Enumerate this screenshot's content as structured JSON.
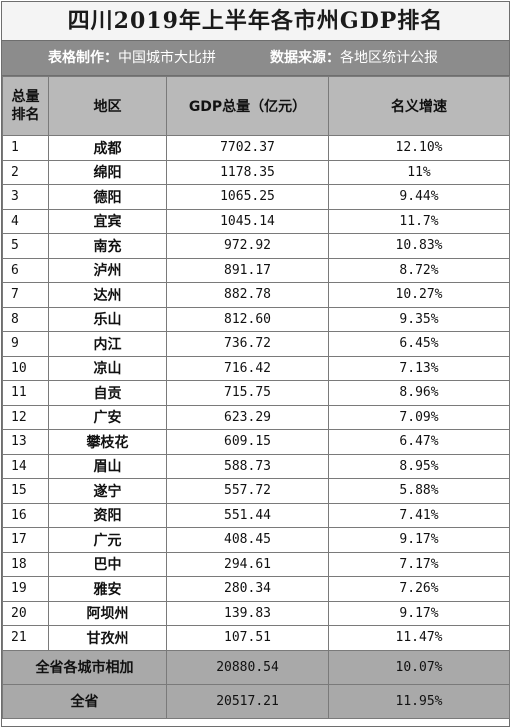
{
  "title": "四川2019年上半年各市州GDP排名",
  "subtitle": {
    "maker_label": "表格制作：",
    "maker_value": "中国城市大比拼",
    "source_label": "数据来源：",
    "source_value": "各地区统计公报"
  },
  "headers": {
    "rank_line1": "总量",
    "rank_line2": "排名",
    "region": "地区",
    "gdp": "GDP总量（亿元）",
    "growth": "名义增速"
  },
  "rows": [
    {
      "rank": "1",
      "region": "成都",
      "gdp": "7702.37",
      "growth": "12.10%"
    },
    {
      "rank": "2",
      "region": "绵阳",
      "gdp": "1178.35",
      "growth": "11%"
    },
    {
      "rank": "3",
      "region": "德阳",
      "gdp": "1065.25",
      "growth": "9.44%"
    },
    {
      "rank": "4",
      "region": "宜宾",
      "gdp": "1045.14",
      "growth": "11.7%"
    },
    {
      "rank": "5",
      "region": "南充",
      "gdp": "972.92",
      "growth": "10.83%"
    },
    {
      "rank": "6",
      "region": "泸州",
      "gdp": "891.17",
      "growth": "8.72%"
    },
    {
      "rank": "7",
      "region": "达州",
      "gdp": "882.78",
      "growth": "10.27%"
    },
    {
      "rank": "8",
      "region": "乐山",
      "gdp": "812.60",
      "growth": "9.35%"
    },
    {
      "rank": "9",
      "region": "内江",
      "gdp": "736.72",
      "growth": "6.45%"
    },
    {
      "rank": "10",
      "region": "凉山",
      "gdp": "716.42",
      "growth": "7.13%"
    },
    {
      "rank": "11",
      "region": "自贡",
      "gdp": "715.75",
      "growth": "8.96%"
    },
    {
      "rank": "12",
      "region": "广安",
      "gdp": "623.29",
      "growth": "7.09%"
    },
    {
      "rank": "13",
      "region": "攀枝花",
      "gdp": "609.15",
      "growth": "6.47%"
    },
    {
      "rank": "14",
      "region": "眉山",
      "gdp": "588.73",
      "growth": "8.95%"
    },
    {
      "rank": "15",
      "region": "遂宁",
      "gdp": "557.72",
      "growth": "5.88%"
    },
    {
      "rank": "16",
      "region": "资阳",
      "gdp": "551.44",
      "growth": "7.41%"
    },
    {
      "rank": "17",
      "region": "广元",
      "gdp": "408.45",
      "growth": "9.17%"
    },
    {
      "rank": "18",
      "region": "巴中",
      "gdp": "294.61",
      "growth": "7.17%"
    },
    {
      "rank": "19",
      "region": "雅安",
      "gdp": "280.34",
      "growth": "7.26%"
    },
    {
      "rank": "20",
      "region": "阿坝州",
      "gdp": "139.83",
      "growth": "9.17%"
    },
    {
      "rank": "21",
      "region": "甘孜州",
      "gdp": "107.51",
      "growth": "11.47%"
    }
  ],
  "totals": [
    {
      "label": "全省各城市相加",
      "gdp": "20880.54",
      "growth": "10.07%"
    },
    {
      "label": "全省",
      "gdp": "20517.21",
      "growth": "11.95%"
    }
  ],
  "colors": {
    "subtitle_bg": "#8c8c8c",
    "header_bg": "#b9b9b9",
    "total_bg": "#a9a9a9"
  }
}
